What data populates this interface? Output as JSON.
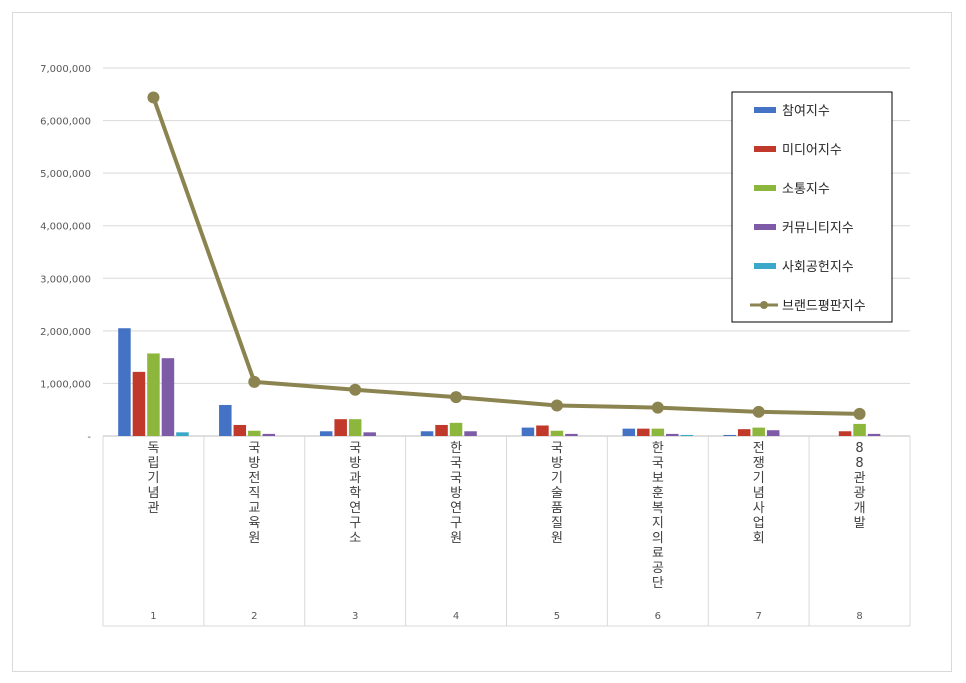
{
  "chart_data": {
    "type": "bar",
    "categories": [
      "1",
      "2",
      "3",
      "4",
      "5",
      "6",
      "7",
      "8"
    ],
    "category_names": [
      "독립기념관",
      "국방전직교육원",
      "국방과학연구소",
      "한국국방연구원",
      "국방기술품질원",
      "한국보훈복지의료공단",
      "전쟁기념사업회",
      "88관광개발"
    ],
    "series": [
      {
        "name": "참여지수",
        "kind": "bar",
        "color": "#4472C4",
        "values": [
          2050000,
          590000,
          90000,
          90000,
          160000,
          140000,
          20000,
          0
        ]
      },
      {
        "name": "미디어지수",
        "kind": "bar",
        "color": "#C0392B",
        "values": [
          1220000,
          210000,
          320000,
          210000,
          200000,
          140000,
          130000,
          90000
        ]
      },
      {
        "name": "소통지수",
        "kind": "bar",
        "color": "#8DB63C",
        "values": [
          1570000,
          100000,
          320000,
          250000,
          100000,
          140000,
          160000,
          230000
        ]
      },
      {
        "name": "커뮤니티지수",
        "kind": "bar",
        "color": "#7E5BA6",
        "values": [
          1480000,
          40000,
          70000,
          90000,
          40000,
          40000,
          110000,
          40000
        ]
      },
      {
        "name": "사회공헌지수",
        "kind": "bar",
        "color": "#3AA9C9",
        "values": [
          70000,
          0,
          0,
          0,
          0,
          20000,
          0,
          0
        ]
      },
      {
        "name": "브랜드평판지수",
        "kind": "line",
        "color": "#8C8450",
        "values": [
          6440000,
          1030000,
          880000,
          740000,
          580000,
          540000,
          460000,
          420000
        ]
      }
    ],
    "ylim": [
      0,
      7000000
    ],
    "yticks": [
      "7,000,000",
      "6,000,000",
      "5,000,000",
      "4,000,000",
      "3,000,000",
      "2,000,000",
      "1,000,000",
      "-"
    ],
    "grid": true,
    "legend_position": "right"
  }
}
